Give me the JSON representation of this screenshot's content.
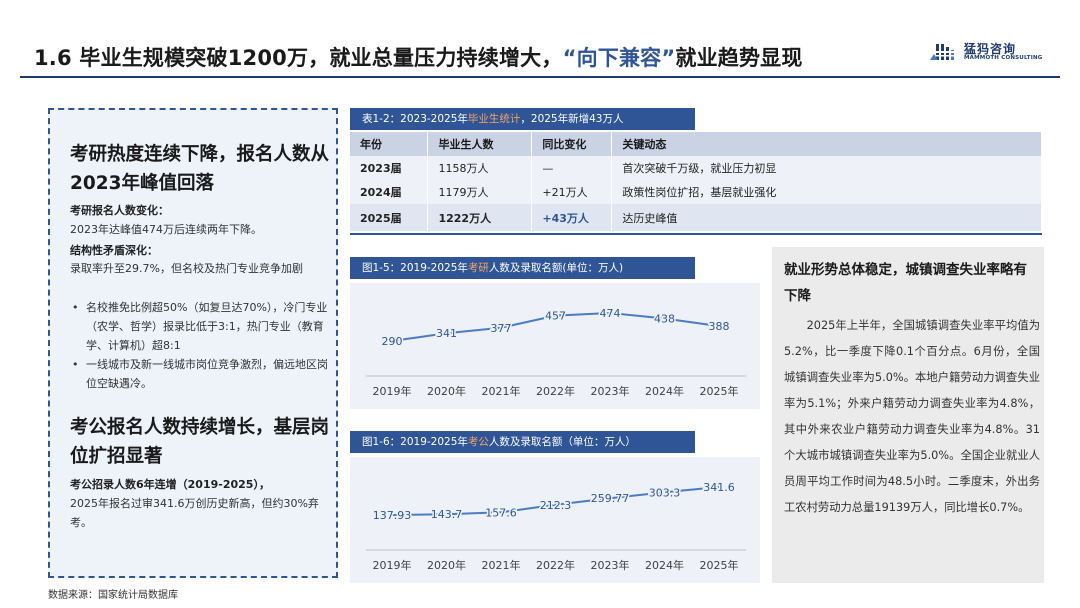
{
  "header": {
    "title_pre": "1.6 毕业生规模突破1200万，就业总量压力持续增大，",
    "title_hl": "“向下兼容”",
    "title_post": "就业趋势显现",
    "logo_cn": "猛犸咨询",
    "logo_en": "MAMMOTH CONSULTING"
  },
  "left_panel": {
    "heading1": "考研热度连续下降，报名人数从2023年峰值回落",
    "sub1": "考研报名人数变化：",
    "text1": "2023年达峰值474万后连续两年下降。",
    "sub2": "结构性矛盾深化：",
    "text2": "录取率升至29.7%，但名校及热门专业竞争加剧",
    "bullets": [
      "名校推免比例超50%（如复旦达70%），冷门专业（农学、哲学）报录比低于3:1，热门专业（教育学、计算机）超8:1",
      "一线城市及新一线城市岗位竞争激烈，偏远地区岗位空缺遇冷。"
    ],
    "bullet_symbol": "•",
    "heading2": "考公报名人数持续增长，基层岗位扩招显著",
    "sub3": "考公招录人数6年连增（2019-2025），",
    "text3": "2025年报名过审341.6万创历史新高，但约30%弃考。"
  },
  "table": {
    "caption_pre": "表1-2：2023-2025年",
    "caption_hl": "毕业生统计",
    "caption_post": "，2025年新增43万人",
    "headers": [
      "年份",
      "毕业生人数",
      "同比变化",
      "关键动态"
    ],
    "rows": [
      [
        "2023届",
        "1158万人",
        "—",
        "首次突破千万级，就业压力初显"
      ],
      [
        "2024届",
        "1179万人",
        "+21万人",
        "政策性岗位扩招，基层就业强化"
      ],
      [
        "2025届",
        "1222万人",
        "+43万人",
        "达历史峰值"
      ]
    ]
  },
  "chart1": {
    "caption_pre": "图1-5：2019-2025年",
    "caption_hl": "考研",
    "caption_post": "人数及录取名额(单位：万人)"
  },
  "chart2": {
    "caption_pre": "图1-6：2019-2025年",
    "caption_hl": "考公",
    "caption_post": "人数及录取名额（单位：万人）"
  },
  "chart_data": [
    {
      "type": "line",
      "title": "图1-5：2019-2025年考研人数及录取名额(单位：万人)",
      "categories": [
        "2019年",
        "2020年",
        "2021年",
        "2022年",
        "2023年",
        "2024年",
        "2025年"
      ],
      "values": [
        290,
        341,
        377,
        457,
        474,
        438,
        388
      ],
      "labels": [
        "290",
        "341",
        "377",
        "457",
        "474",
        "438",
        "388"
      ],
      "color": "#4a7bc4"
    },
    {
      "type": "line",
      "title": "图1-6：2019-2025年考公人数及录取名额（单位：万人）",
      "categories": [
        "2019年",
        "2020年",
        "2021年",
        "2022年",
        "2023年",
        "2024年",
        "2025年"
      ],
      "values": [
        137.93,
        143.7,
        157.6,
        212.3,
        259.77,
        303.3,
        341.6
      ],
      "labels": [
        "137.93",
        "143.7",
        "157.6",
        "212.3",
        "259.77",
        "303.3",
        "341.6"
      ],
      "color": "#4a7bc4"
    }
  ],
  "right_panel": {
    "heading": "就业形势总体稳定，城镇调查失业率略有下降",
    "body": "2025年上半年，全国城镇调查失业率平均值为5.2%，比一季度下降0.1个百分点。6月份，全国城镇调查失业率为5.0%。本地户籍劳动力调查失业率为5.1%；外来户籍劳动力调查失业率为4.8%，其中外来农业户籍劳动力调查失业率为4.8%。31个大城市城镇调查失业率为5.0%。全国企业就业人员周平均工作时间为48.5小时。二季度末，外出务工农村劳动力总量19139万人，同比增长0.7%。"
  },
  "source": "数据来源：国家统计局数据库",
  "colors": {
    "primary": "#2f5597",
    "accent": "#f4a460",
    "line": "#4a7bc4"
  }
}
